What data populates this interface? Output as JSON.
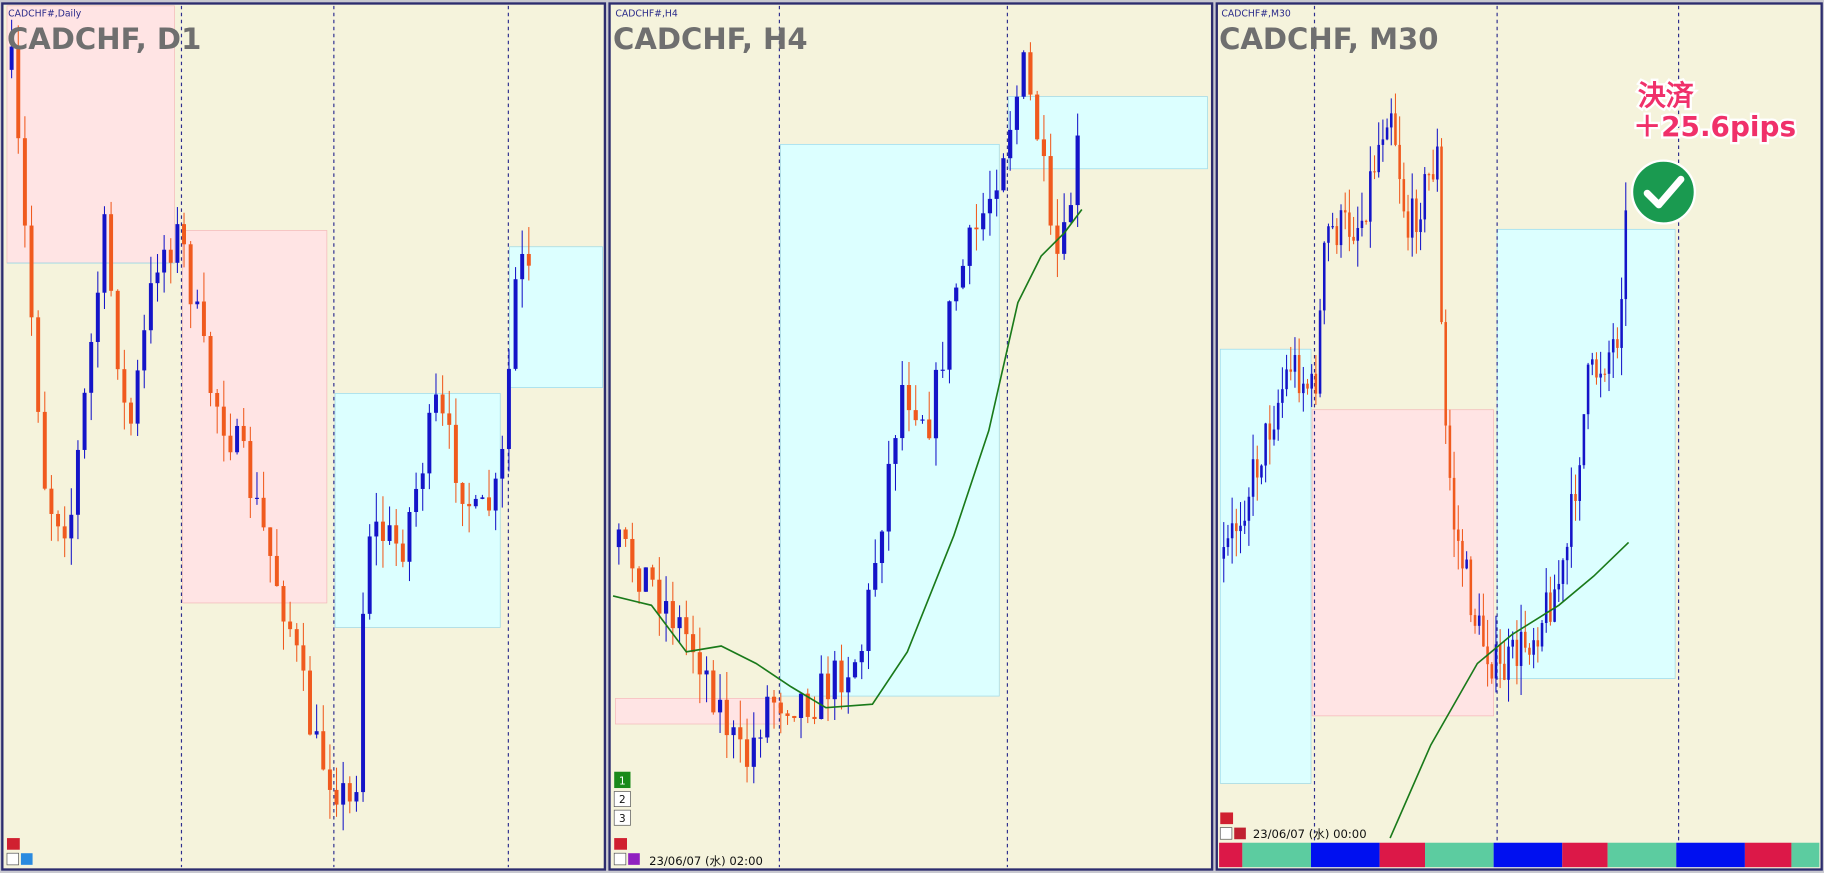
{
  "panels": [
    {
      "symbol": "CADCHF#,Daily",
      "title": "CADCHF, D1"
    },
    {
      "symbol": "CADCHF#,H4",
      "title": "CADCHF, H4",
      "timestamp": "23/06/07 (水) 02:00",
      "buttons": [
        "1",
        "2",
        "3"
      ]
    },
    {
      "symbol": "CADCHF#,M30",
      "title": "CADCHF, M30",
      "timestamp": "23/06/07 (水) 00:00"
    }
  ],
  "annotation": {
    "line1": "決済",
    "line2": "＋25.6pips"
  }
}
